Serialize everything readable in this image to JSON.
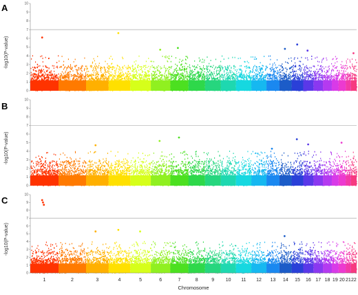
{
  "chart_data": {
    "type": "scatter",
    "subtype": "manhattan",
    "xlabel": "Chromosome",
    "ylabel": "-log10(P-value)",
    "ylim": [
      0,
      10
    ],
    "yticks": [
      0,
      1,
      2,
      3,
      4,
      5,
      6,
      7,
      8,
      9,
      10
    ],
    "threshold": 7,
    "chromosomes": [
      "1",
      "2",
      "3",
      "4",
      "5",
      "6",
      "7",
      "8",
      "9",
      "10",
      "11",
      "12",
      "13",
      "14",
      "15",
      "16",
      "17",
      "18",
      "19",
      "20",
      "21",
      "22"
    ],
    "chromosome_colors": [
      "#ff3300",
      "#ff7a00",
      "#ffb000",
      "#ffe000",
      "#d6ff1a",
      "#90f020",
      "#4ce020",
      "#2ed84a",
      "#26d67e",
      "#1ed8b0",
      "#16d8e0",
      "#16b8f0",
      "#1a88f0",
      "#1c5cc8",
      "#2a40d8",
      "#5a38e8",
      "#8a38f0",
      "#b43af0",
      "#d83ae8",
      "#ec3ad0",
      "#f23aa8",
      "#f63a80"
    ],
    "panels": [
      {
        "letter": "A",
        "peaks": [
          {
            "chromosome": "1",
            "value": 6.1
          },
          {
            "chromosome": "4",
            "value": 6.6
          },
          {
            "chromosome": "6",
            "value": 4.7
          },
          {
            "chromosome": "7",
            "value": 4.9
          },
          {
            "chromosome": "14",
            "value": 4.8
          },
          {
            "chromosome": "15",
            "value": 5.3
          },
          {
            "chromosome": "16",
            "value": 4.6
          },
          {
            "chromosome": "22",
            "value": 4.3
          }
        ]
      },
      {
        "letter": "B",
        "peaks": [
          {
            "chromosome": "3",
            "value": 4.7
          },
          {
            "chromosome": "6",
            "value": 5.2
          },
          {
            "chromosome": "7",
            "value": 5.6
          },
          {
            "chromosome": "13",
            "value": 4.3
          },
          {
            "chromosome": "15",
            "value": 5.4
          },
          {
            "chromosome": "16",
            "value": 4.8
          },
          {
            "chromosome": "20",
            "value": 5.0
          }
        ]
      },
      {
        "letter": "C",
        "peaks": [
          {
            "chromosome": "1",
            "value": 9.3
          },
          {
            "chromosome": "1",
            "value": 9.0
          },
          {
            "chromosome": "1",
            "value": 8.7
          },
          {
            "chromosome": "3",
            "value": 5.3
          },
          {
            "chromosome": "4",
            "value": 5.5
          },
          {
            "chromosome": "5",
            "value": 5.3
          },
          {
            "chromosome": "14",
            "value": 4.7
          }
        ]
      }
    ]
  }
}
